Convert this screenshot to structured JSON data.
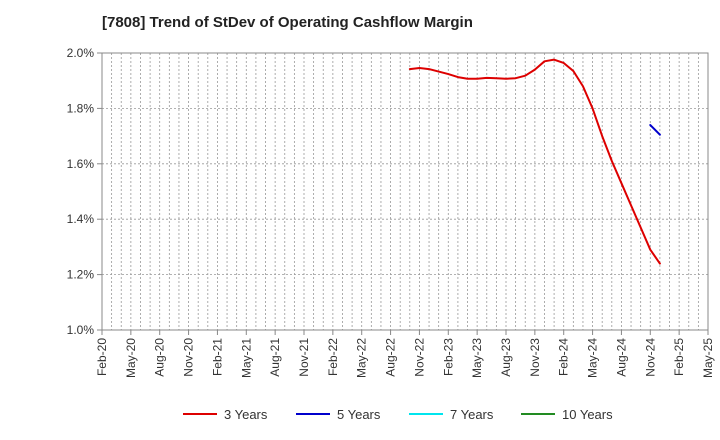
{
  "chart_data": {
    "type": "line",
    "title": "[7808]  Trend of StDev of Operating Cashflow Margin",
    "xlabel": "",
    "ylabel": "",
    "x_tick_labels": [
      "Feb-20",
      "May-20",
      "Aug-20",
      "Nov-20",
      "Feb-21",
      "May-21",
      "Aug-21",
      "Nov-21",
      "Feb-22",
      "May-22",
      "Aug-22",
      "Nov-22",
      "Feb-23",
      "May-23",
      "Aug-23",
      "Nov-23",
      "Feb-24",
      "May-24",
      "Aug-24",
      "Nov-24",
      "Feb-25",
      "May-25"
    ],
    "x_range": [
      "2020-02",
      "2025-05"
    ],
    "ylim": [
      1.0,
      2.0
    ],
    "y_ticks": [
      1.0,
      1.2,
      1.4,
      1.6,
      1.8,
      2.0
    ],
    "y_tick_labels": [
      "1.0%",
      "1.2%",
      "1.4%",
      "1.6%",
      "1.8%",
      "2.0%"
    ],
    "grid": true,
    "legend_position": "bottom",
    "series": [
      {
        "name": "3 Years",
        "color": "#dd0000",
        "points": [
          [
            "2022-10",
            1.942
          ],
          [
            "2022-11",
            1.946
          ],
          [
            "2022-12",
            1.942
          ],
          [
            "2023-01",
            1.933
          ],
          [
            "2023-02",
            1.924
          ],
          [
            "2023-03",
            1.913
          ],
          [
            "2023-04",
            1.907
          ],
          [
            "2023-05",
            1.907
          ],
          [
            "2023-06",
            1.91
          ],
          [
            "2023-07",
            1.909
          ],
          [
            "2023-08",
            1.907
          ],
          [
            "2023-09",
            1.909
          ],
          [
            "2023-10",
            1.918
          ],
          [
            "2023-11",
            1.94
          ],
          [
            "2023-12",
            1.97
          ],
          [
            "2024-01",
            1.976
          ],
          [
            "2024-02",
            1.964
          ],
          [
            "2024-03",
            1.935
          ],
          [
            "2024-04",
            1.88
          ],
          [
            "2024-05",
            1.8
          ],
          [
            "2024-06",
            1.7
          ],
          [
            "2024-07",
            1.61
          ],
          [
            "2024-08",
            1.53
          ],
          [
            "2024-09",
            1.45
          ],
          [
            "2024-10",
            1.37
          ],
          [
            "2024-11",
            1.29
          ],
          [
            "2024-12",
            1.24
          ]
        ]
      },
      {
        "name": "5 Years",
        "color": "#0000cc",
        "points": [
          [
            "2024-11",
            1.74
          ],
          [
            "2024-12",
            1.705
          ]
        ]
      },
      {
        "name": "7 Years",
        "color": "#00e5ee",
        "points": []
      },
      {
        "name": "10 Years",
        "color": "#228b22",
        "points": []
      }
    ]
  }
}
